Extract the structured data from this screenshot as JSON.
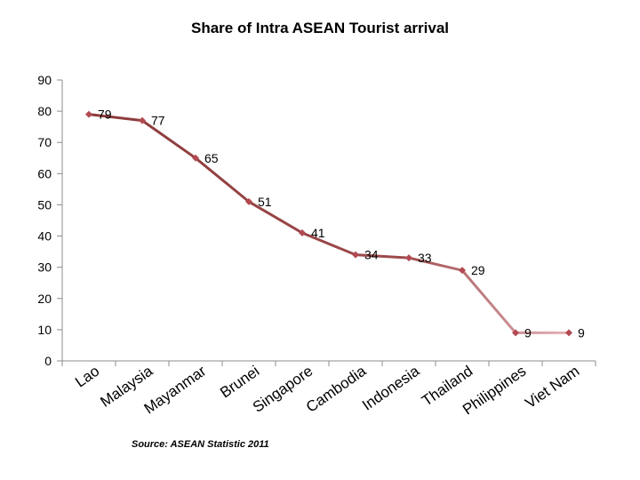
{
  "chart_data": {
    "type": "line",
    "title": "Share of Intra ASEAN Tourist arrival",
    "xlabel": "",
    "ylabel": "",
    "categories": [
      "Lao",
      "Malaysia",
      "Mayanmar",
      "Brunei",
      "Singapore",
      "Cambodia",
      "Indonesia",
      "Thailand",
      "Philippines",
      "Viet Nam"
    ],
    "values": [
      79,
      77,
      65,
      51,
      41,
      34,
      33,
      29,
      9,
      9
    ],
    "data_labels": [
      "79",
      "77",
      "65",
      "51",
      "41",
      "34",
      "33",
      "29",
      "9",
      "9"
    ],
    "ylim": [
      0,
      90
    ],
    "yticks": [
      0,
      10,
      20,
      30,
      40,
      50,
      60,
      70,
      80,
      90
    ],
    "grid": false,
    "legend": "none",
    "line_color_start": "#8b3a3a",
    "line_color_end": "#e3b3b8",
    "marker_color": "#b24a52"
  },
  "source_note": "Source: ASEAN Statistic 2011"
}
